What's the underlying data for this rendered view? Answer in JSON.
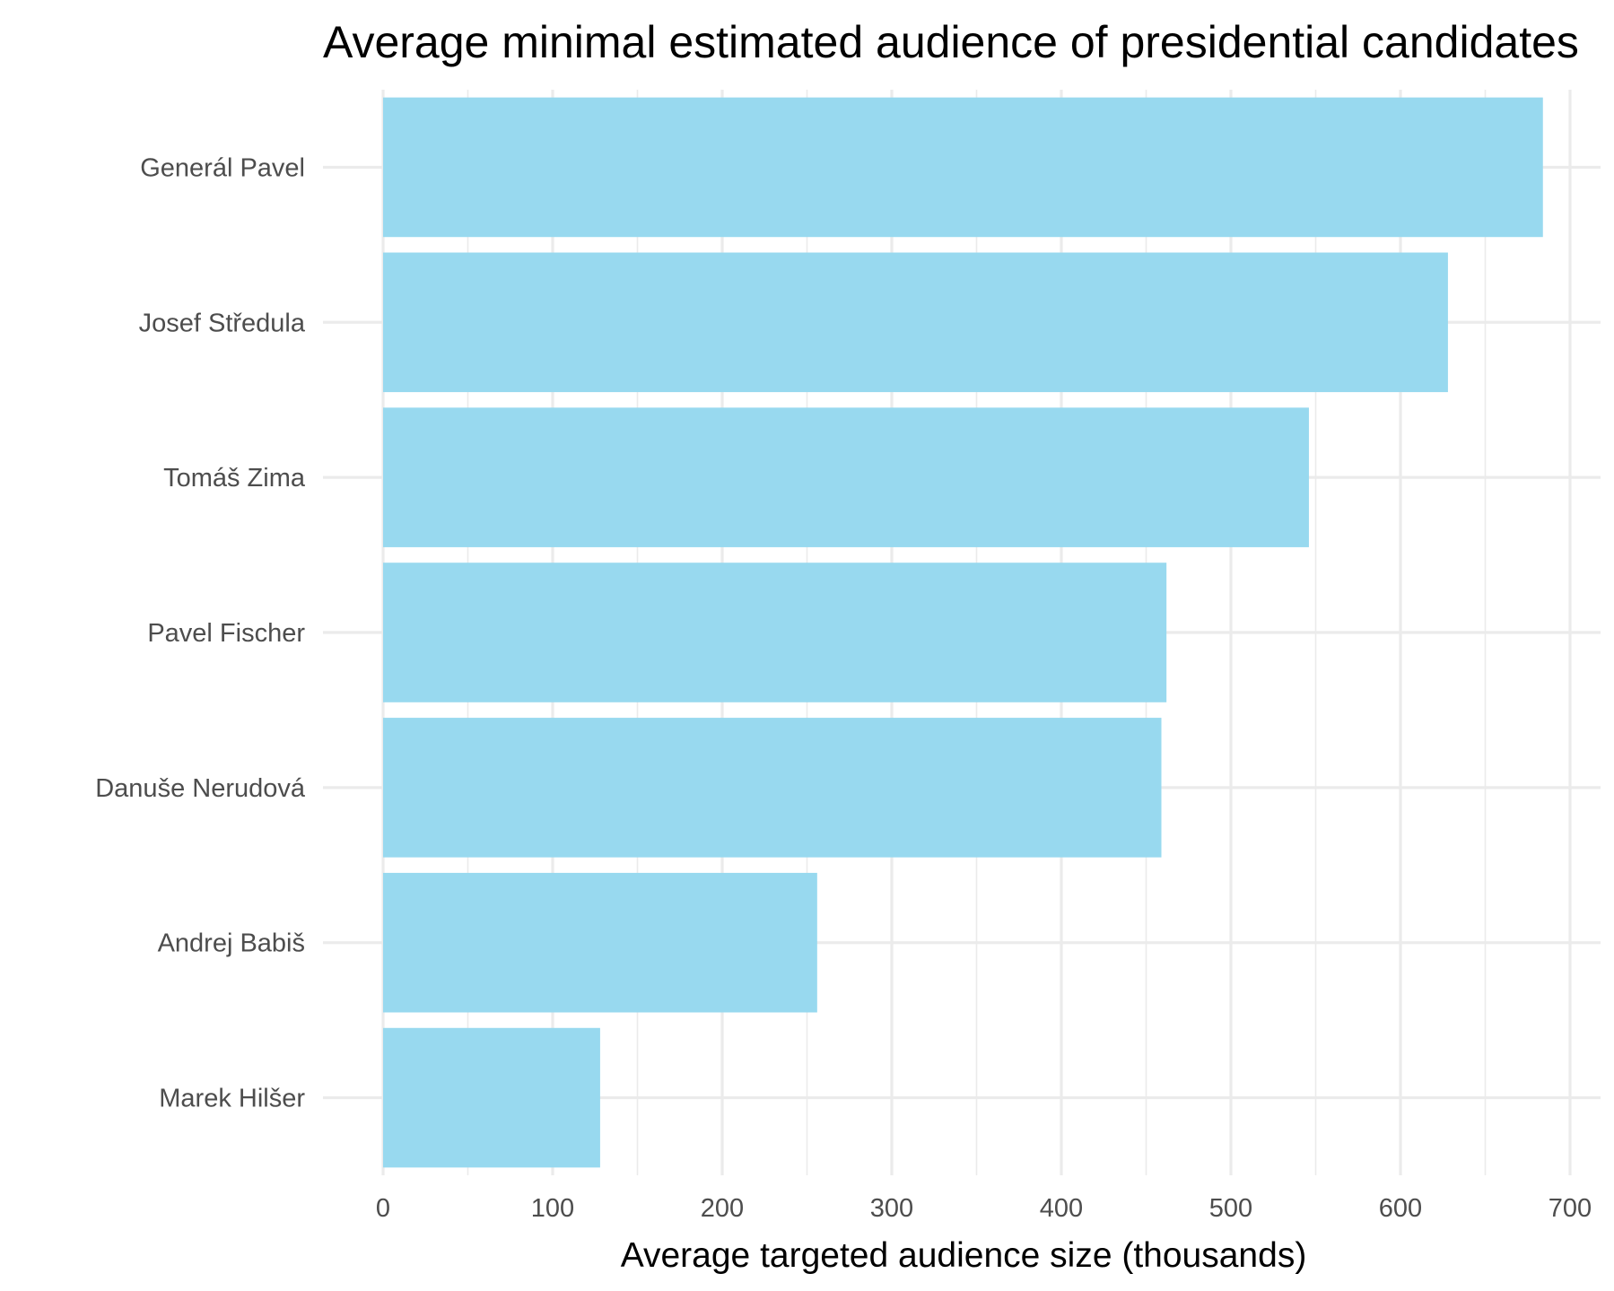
{
  "chart_data": {
    "type": "bar",
    "orientation": "horizontal",
    "title": "Average minimal estimated audience of presidential candidates",
    "xlabel": "Average targeted audience size (thousands)",
    "ylabel": "",
    "categories": [
      "Generál Pavel",
      "Josef Středula",
      "Tomáš Zima",
      "Pavel Fischer",
      "Danuše Nerudová",
      "Andrej Babiš",
      "Marek Hilšer"
    ],
    "values": [
      684,
      628,
      546,
      462,
      459,
      256,
      128
    ],
    "xlim": [
      0,
      720
    ],
    "x_ticks": [
      "0",
      "100",
      "200",
      "300",
      "400",
      "500",
      "600",
      "700"
    ],
    "grid": true,
    "bar_color": "#98d9ef"
  }
}
